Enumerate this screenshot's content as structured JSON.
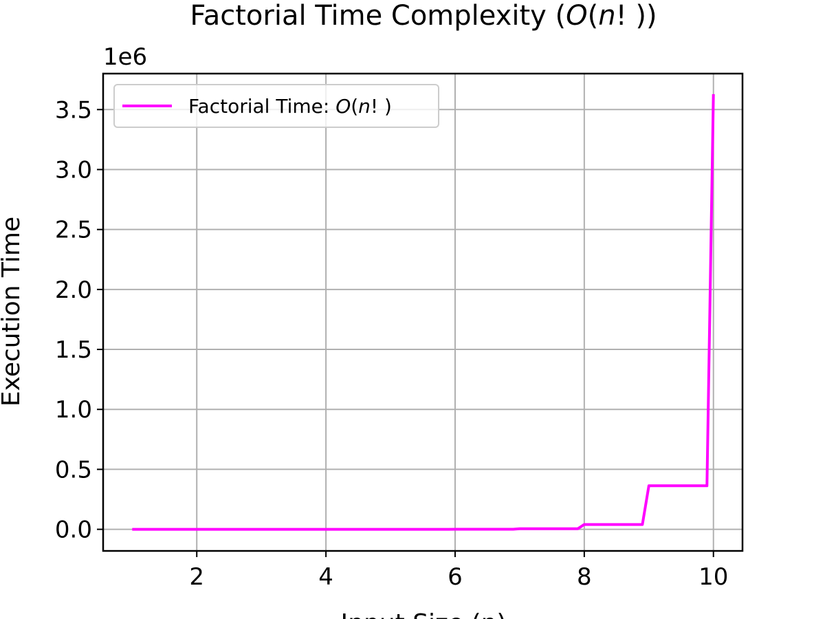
{
  "chart_data": {
    "type": "line",
    "title": "Factorial Time Complexity (O(n! ))",
    "title_parts": {
      "before": "Factorial Time Complexity (",
      "o": "O",
      "open": "(",
      "n": "n",
      "close": "! ))"
    },
    "xlabel": "Input Size (n)",
    "ylabel": "Execution Time",
    "y_offset_label": "1e6",
    "xlim": [
      0.55,
      10.45
    ],
    "ylim": [
      -0.18,
      3.8
    ],
    "x_ticks": [
      2,
      4,
      6,
      8,
      10
    ],
    "x_tick_labels": [
      "2",
      "4",
      "6",
      "8",
      "10"
    ],
    "y_ticks": [
      0,
      0.5,
      1.0,
      1.5,
      2.0,
      2.5,
      3.0,
      3.5
    ],
    "y_tick_labels": [
      "0.0",
      "0.5",
      "1.0",
      "1.5",
      "2.0",
      "2.5",
      "3.0",
      "3.5"
    ],
    "grid": true,
    "legend_position": "top-left",
    "series": [
      {
        "name": "Factorial Time: O(n! )",
        "name_parts": {
          "before": "Factorial Time: ",
          "o": "O",
          "open": "(",
          "n": "n",
          "close": "! )"
        },
        "color": "#ff00ff",
        "x": [
          1,
          1.9,
          2,
          2.9,
          3,
          3.9,
          4,
          4.9,
          5,
          5.9,
          6,
          6.9,
          7,
          7.9,
          8,
          8.9,
          9,
          9.9,
          10
        ],
        "y": [
          1e-06,
          1e-06,
          2e-06,
          2e-06,
          6e-06,
          6e-06,
          2.4e-05,
          2.4e-05,
          0.00012,
          0.00012,
          0.00072,
          0.00072,
          0.00504,
          0.00504,
          0.04032,
          0.04032,
          0.36288,
          0.36288,
          3.6288
        ]
      }
    ]
  }
}
